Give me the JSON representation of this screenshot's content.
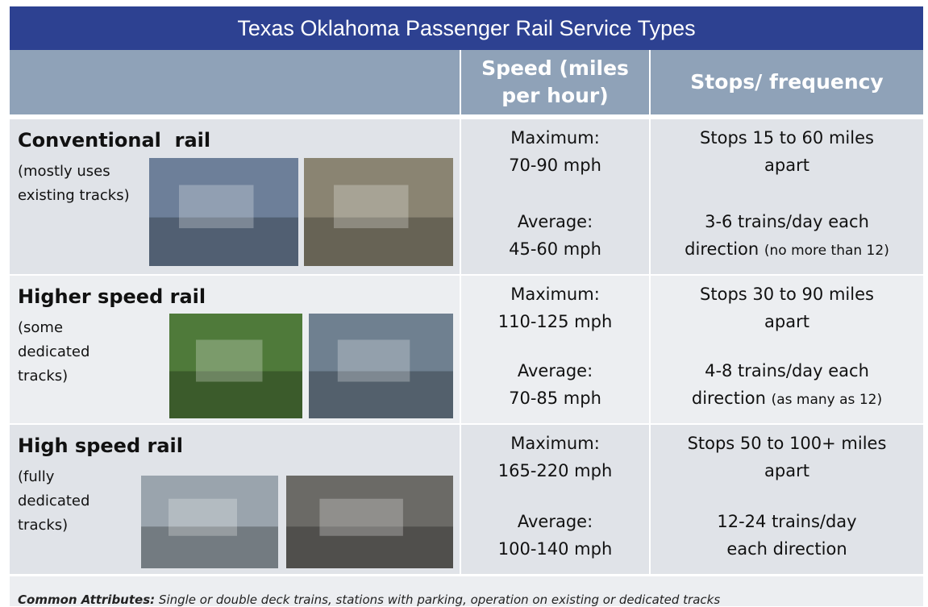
{
  "title": "Texas Oklahoma Passenger Rail Service Types",
  "header": {
    "speed": "Speed (miles per hour)",
    "stops": "Stops/ frequency"
  },
  "rows": [
    {
      "name": "Conventional  rail",
      "note": "(mostly uses existing tracks)",
      "max_label": "Maximum:",
      "max": "70-90 mph",
      "avg_label": "Average:",
      "avg": "45-60 mph",
      "stops": "Stops 15 to 60 miles apart",
      "trains": "3-6 trains/day each direction",
      "trains_note": "(no more than 12)"
    },
    {
      "name": "Higher speed rail",
      "note": "(some dedicated tracks)",
      "max_label": "Maximum:",
      "max": "110-125 mph",
      "avg_label": "Average:",
      "avg": "70-85 mph",
      "stops": "Stops 30 to 90 miles apart",
      "trains": "4-8 trains/day each direction",
      "trains_note": "(as many as 12)"
    },
    {
      "name": "High speed rail",
      "note": "(fully dedicated tracks)",
      "max_label": "Maximum:",
      "max": "165-220 mph",
      "avg_label": "Average:",
      "avg": "100-140 mph",
      "stops": "Stops 50 to 100+ miles apart",
      "trains": "12-24 trains/day each direction"
    }
  ],
  "footer": {
    "label": "Common Attributes:",
    "text": "Single or double deck trains, stations with parking, operation on existing or dedicated tracks"
  }
}
